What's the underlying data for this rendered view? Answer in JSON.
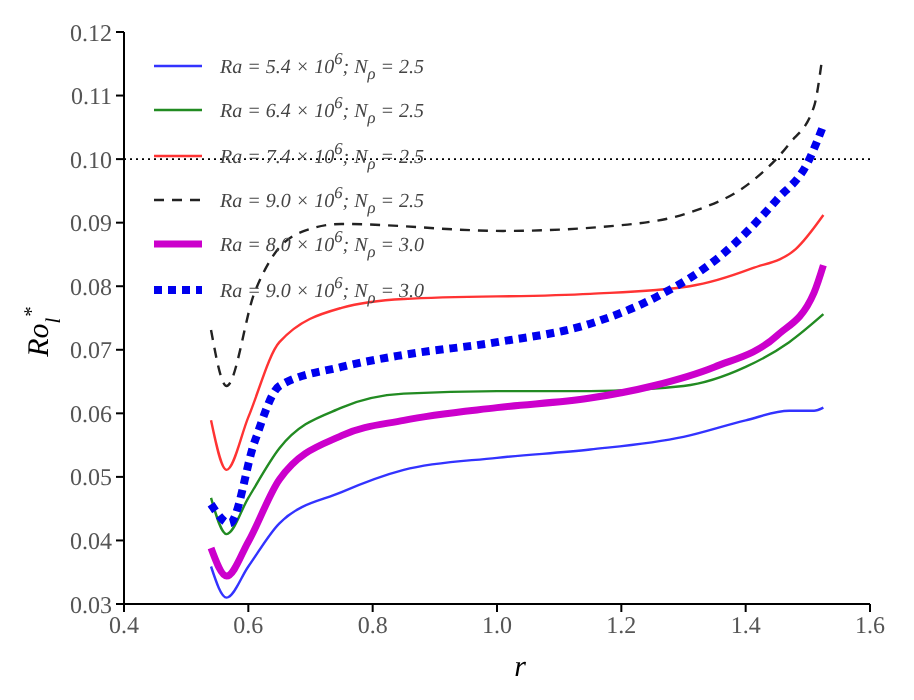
{
  "chart_data": {
    "type": "line",
    "xlabel": "r",
    "ylabel": "Ro$_{l}$$^{*}$",
    "xlim": [
      0.4,
      1.6
    ],
    "xticks": [
      0.4,
      0.6,
      0.8,
      {
        "value": 1,
        "label": "1.0"
      },
      1.2,
      1.4,
      1.6
    ],
    "ylim": [
      0.03,
      0.12
    ],
    "yticks": [
      0.03,
      0.04,
      0.05,
      0.06,
      0.07,
      0.08,
      0.09,
      {
        "value": 0.1,
        "label": "0.10"
      },
      0.11,
      0.12
    ],
    "grid": false,
    "legend": "top left",
    "marker": "none",
    "ref_lines": [
      {
        "axis": "y",
        "value": 0.1,
        "color": "#000000",
        "line_style": "dotted"
      }
    ],
    "series": [
      {
        "name": "Ra = 5.4 × 10$^{6}$; N$_{ρ}$ = 2.5",
        "color": "#3333ff",
        "line_style": "solid",
        "x": [
          0.54,
          0.565,
          0.6,
          0.65,
          0.75,
          0.85,
          1.0,
          1.15,
          1.3,
          1.4,
          1.47,
          1.51,
          1.525
        ],
        "values": [
          0.0359,
          0.031,
          0.0359,
          0.0427,
          0.0476,
          0.0511,
          0.053,
          0.0543,
          0.0563,
          0.0589,
          0.0604,
          0.0604,
          0.0609
        ]
      },
      {
        "name": "Ra = 6.4 × 10$^{6}$; N$_{ρ}$ = 2.5",
        "color": "#228b22",
        "line_style": "solid",
        "x": [
          0.54,
          0.565,
          0.6,
          0.65,
          0.75,
          0.85,
          1.0,
          1.15,
          1.3,
          1.4,
          1.47,
          1.525
        ],
        "values": [
          0.0467,
          0.041,
          0.0467,
          0.0545,
          0.0609,
          0.0631,
          0.0635,
          0.0635,
          0.0643,
          0.0673,
          0.0712,
          0.0756
        ]
      },
      {
        "name": "Ra = 7.4 × 10$^{6}$; N$_{ρ}$ = 2.5",
        "color": "#ff3333",
        "line_style": "solid",
        "x": [
          0.54,
          0.565,
          0.6,
          0.65,
          0.75,
          0.85,
          1.15,
          1.31,
          1.41,
          1.48,
          1.525
        ],
        "values": [
          0.0589,
          0.0511,
          0.0594,
          0.0712,
          0.0766,
          0.078,
          0.0788,
          0.08,
          0.0828,
          0.0858,
          0.0912
        ]
      },
      {
        "name": "Ra = 9.0 × 10$^{6}$; N$_{ρ}$ = 2.5",
        "color": "#222222",
        "line_style": "dashed",
        "x": [
          0.54,
          0.565,
          0.61,
          0.64,
          0.69,
          0.75,
          1.01,
          1.21,
          1.31,
          1.41,
          1.47,
          1.51,
          1.522
        ],
        "values": [
          0.0731,
          0.0643,
          0.079,
          0.0848,
          0.0887,
          0.0898,
          0.0887,
          0.0897,
          0.0916,
          0.0965,
          0.1024,
          0.1083,
          0.1151
        ]
      },
      {
        "name": "Ra = 8.0 × 10$^{6}$; N$_{ρ}$ = 3.0",
        "color": "#cc00cc",
        "line_style": "solid",
        "x": [
          0.54,
          0.565,
          0.6,
          0.65,
          0.75,
          0.85,
          1.0,
          1.15,
          1.25,
          1.35,
          1.45,
          1.51,
          1.525
        ],
        "values": [
          0.0388,
          0.0344,
          0.0398,
          0.0496,
          0.0565,
          0.0589,
          0.0609,
          0.0624,
          0.0643,
          0.0673,
          0.0722,
          0.079,
          0.0833
        ]
      },
      {
        "name": "Ra = 9.0 × 10$^{6}$; N$_{ρ}$ = 3.0",
        "color": "#0000ee",
        "line_style": "dotted",
        "x": [
          0.54,
          0.57,
          0.61,
          0.65,
          0.75,
          0.85,
          1.0,
          1.15,
          1.26,
          1.36,
          1.45,
          1.5,
          1.523
        ],
        "values": [
          0.0457,
          0.0427,
          0.0555,
          0.0643,
          0.0673,
          0.0692,
          0.0712,
          0.0741,
          0.0785,
          0.0848,
          0.0936,
          0.0995,
          0.1048
        ]
      }
    ]
  }
}
